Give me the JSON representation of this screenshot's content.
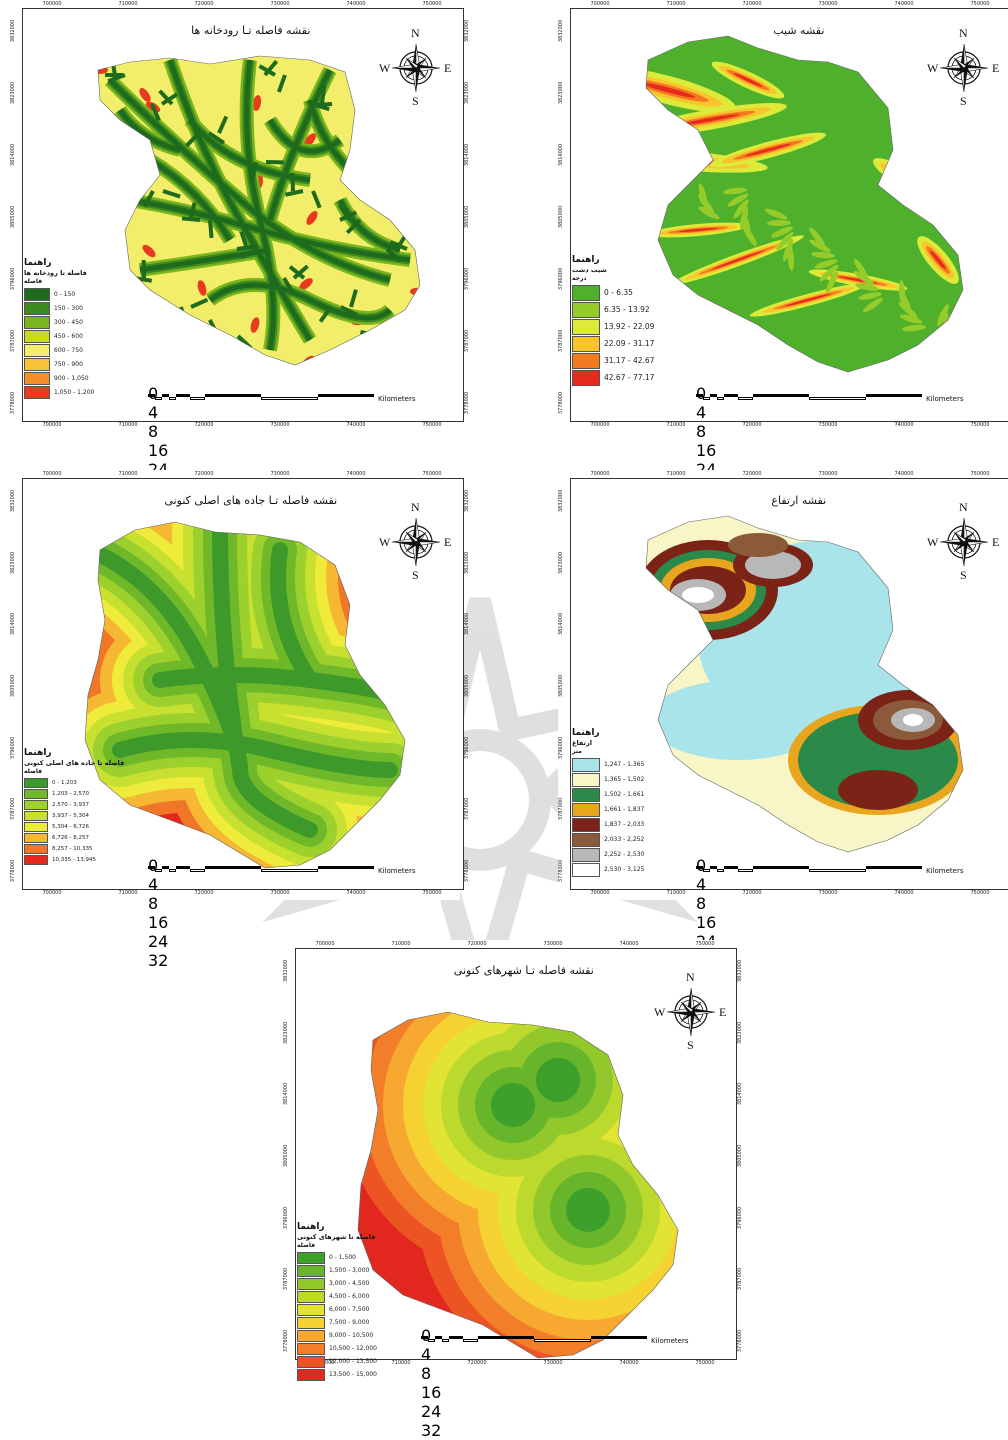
{
  "maps": [
    {
      "id": "rivers",
      "title": "نقشه فاصله تـا رودخانه ها",
      "legend_title": "راهنما",
      "legend_sub": "فاصله تا رودخانه ها",
      "legend_unit": "فاصله",
      "classes": [
        {
          "label": "0 - 150",
          "color": "#1e6b1e"
        },
        {
          "label": "150 - 300",
          "color": "#3d8a1e"
        },
        {
          "label": "300 - 450",
          "color": "#7bb51e"
        },
        {
          "label": "450 - 600",
          "color": "#c8dc1e"
        },
        {
          "label": "600 - 750",
          "color": "#f3ee6a"
        },
        {
          "label": "750 - 900",
          "color": "#f7c23a"
        },
        {
          "label": "900 - 1,050",
          "color": "#f58f2a"
        },
        {
          "label": "1,050 - 1,200",
          "color": "#e83a1e"
        }
      ],
      "top_ticks": [
        "700000",
        "710000",
        "720000",
        "730000",
        "740000",
        "750000"
      ],
      "bot_ticks": [
        "700000",
        "710000",
        "720000",
        "730000",
        "740000",
        "750000"
      ],
      "side_ticks": [
        "3832000",
        "3823000",
        "3814000",
        "3805000",
        "3796000",
        "3787000",
        "3778000"
      ]
    },
    {
      "id": "slope",
      "title": "نقشه شیب",
      "legend_title": "راهنما",
      "legend_sub": "شیب دشت",
      "legend_unit": "درجه",
      "classes": [
        {
          "label": "0 - 6.35",
          "color": "#4fb12b"
        },
        {
          "label": "6.35 - 13.92",
          "color": "#96cc2a"
        },
        {
          "label": "13.92 - 22.09",
          "color": "#dcea3a"
        },
        {
          "label": "22.09 - 31.17",
          "color": "#f9c52c"
        },
        {
          "label": "31.17 - 42.67",
          "color": "#f47a20"
        },
        {
          "label": "42.67 - 77.17",
          "color": "#e8291d"
        }
      ],
      "top_ticks": [
        "700000",
        "710000",
        "720000",
        "730000",
        "740000",
        "750000"
      ],
      "bot_ticks": [
        "700000",
        "710000",
        "720000",
        "730000",
        "740000",
        "750000"
      ],
      "side_ticks": [
        "3832000",
        "3823000",
        "3814000",
        "3805000",
        "3796000",
        "3787000",
        "3778000"
      ]
    },
    {
      "id": "roads",
      "title": "نقشه فاصله تـا جاده های اصلی کنونی",
      "legend_title": "راهنما",
      "legend_sub": "فاصله تا جاده های اصلی کنونی",
      "legend_unit": "فاصله",
      "classes": [
        {
          "label": "0 - 1,203",
          "color": "#3d9a2a"
        },
        {
          "label": "1,203 - 2,570",
          "color": "#6fb82a"
        },
        {
          "label": "2,570 - 3,937",
          "color": "#9cd02c"
        },
        {
          "label": "3,937 - 5,304",
          "color": "#c8e030"
        },
        {
          "label": "5,304 - 6,726",
          "color": "#eeeb3a"
        },
        {
          "label": "6,726 - 8,257",
          "color": "#f6b832"
        },
        {
          "label": "8,257 - 10,335",
          "color": "#f07628"
        },
        {
          "label": "10,335 - 13,945",
          "color": "#e4281e"
        }
      ],
      "top_ticks": [
        "700000",
        "710000",
        "720000",
        "730000",
        "740000",
        "750000"
      ],
      "bot_ticks": [
        "700000",
        "710000",
        "720000",
        "730000",
        "740000",
        "750000"
      ],
      "side_ticks": [
        "3832000",
        "3823000",
        "3814000",
        "3805000",
        "3796000",
        "3787000",
        "3778000"
      ]
    },
    {
      "id": "elevation",
      "title": "نقشه ارتفاع",
      "legend_title": "راهنما",
      "legend_sub": "ارتفاع",
      "legend_unit": "متر",
      "classes": [
        {
          "label": "1,247 - 1,365",
          "color": "#a8e4ea"
        },
        {
          "label": "1,365 - 1,502",
          "color": "#f8f6c6"
        },
        {
          "label": "1,502 - 1,661",
          "color": "#2b8a4a"
        },
        {
          "label": "1,661 - 1,837",
          "color": "#e8a51e"
        },
        {
          "label": "1,837 - 2,033",
          "color": "#7a2316"
        },
        {
          "label": "2,033 - 2,252",
          "color": "#8a5a3a"
        },
        {
          "label": "2,252 - 2,530",
          "color": "#b8b8b8"
        },
        {
          "label": "2,530 - 3,125",
          "color": "#ffffff"
        }
      ],
      "top_ticks": [
        "700000",
        "710000",
        "720000",
        "730000",
        "740000",
        "750000"
      ],
      "bot_ticks": [
        "700000",
        "710000",
        "720000",
        "730000",
        "740000",
        "750000"
      ],
      "side_ticks": [
        "3832000",
        "3823000",
        "3814000",
        "3805000",
        "3796000",
        "3787000",
        "3778000"
      ]
    },
    {
      "id": "cities",
      "title": "نقشه فاصله تـا شهرهای کنونی",
      "legend_title": "راهنما",
      "legend_sub": "فاصله تا شهرهای کنونی",
      "legend_unit": "فاصله",
      "classes": [
        {
          "label": "0 - 1,500",
          "color": "#3da02a"
        },
        {
          "label": "1,500 - 3,000",
          "color": "#66b52a"
        },
        {
          "label": "3,000 - 4,500",
          "color": "#92c82c"
        },
        {
          "label": "4,500 - 6,000",
          "color": "#bcd92e"
        },
        {
          "label": "6,000 - 7,500",
          "color": "#e2e434"
        },
        {
          "label": "7,500 - 9,000",
          "color": "#f5d232"
        },
        {
          "label": "9,000 - 10,500",
          "color": "#f6a830"
        },
        {
          "label": "10,500 - 12,000",
          "color": "#f27e2a"
        },
        {
          "label": "12,000 - 13,500",
          "color": "#ec5424"
        },
        {
          "label": "13,500 - 15,000",
          "color": "#e2281e"
        }
      ],
      "top_ticks": [
        "700000",
        "710000",
        "720000",
        "730000",
        "740000",
        "750000"
      ],
      "bot_ticks": [
        "700000",
        "710000",
        "720000",
        "730000",
        "740000",
        "750000"
      ],
      "side_ticks": [
        "3832000",
        "3823000",
        "3814000",
        "3805000",
        "3796000",
        "3787000",
        "3778000"
      ]
    }
  ],
  "scale": {
    "ticks": [
      "0",
      "4",
      "8",
      "16",
      "24",
      "32"
    ],
    "unit": "Kilometers"
  },
  "compass": {
    "n": "N",
    "s": "S",
    "e": "E",
    "w": "W"
  }
}
